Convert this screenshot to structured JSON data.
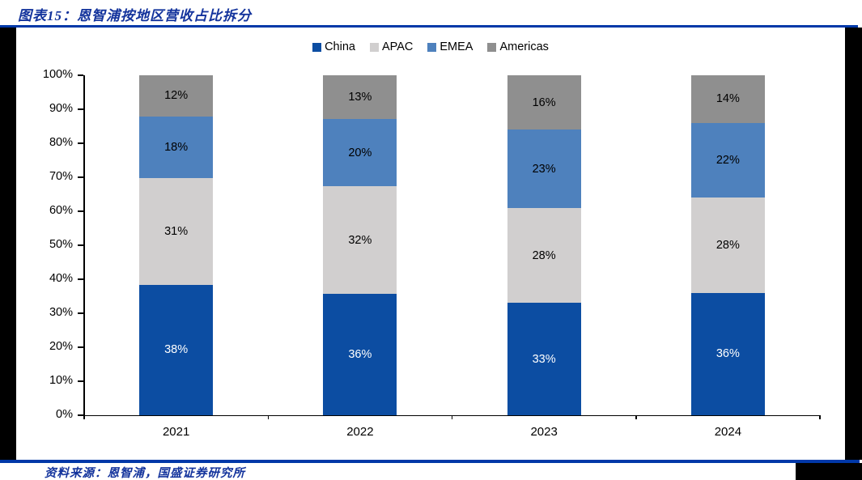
{
  "figure": {
    "title": "图表15：恩智浦按地区营收占比拆分",
    "source": "资料来源：恩智浦，国盛证券研究所"
  },
  "colors": {
    "divider_blue": "#0038A8",
    "caption_blue": "#13339C",
    "axis_black": "#000000",
    "page_frame_black": "#000000"
  },
  "chart_data": {
    "type": "bar",
    "stacked": true,
    "unit": "%",
    "title": "图表15：恩智浦按地区营收占比拆分",
    "categories": [
      "2021",
      "2022",
      "2023",
      "2024"
    ],
    "series": [
      {
        "name": "China",
        "color": "#0C4DA2",
        "label_color": "#FFFFFF",
        "values": [
          38,
          36,
          33,
          36
        ]
      },
      {
        "name": "APAC",
        "color": "#D1CFCF",
        "label_color": "#000000",
        "values": [
          31,
          32,
          28,
          28
        ]
      },
      {
        "name": "EMEA",
        "color": "#4E81BD",
        "label_color": "#000000",
        "values": [
          18,
          20,
          23,
          22
        ]
      },
      {
        "name": "Americas",
        "color": "#8F8F8F",
        "label_color": "#000000",
        "values": [
          12,
          13,
          16,
          14
        ]
      }
    ],
    "y_axis": {
      "min": 0,
      "max": 100,
      "step": 10,
      "tick_suffix": "%"
    },
    "ylim": [
      0,
      100
    ],
    "legend_position": "top",
    "gridlines": false,
    "bars_normalized_to_100": true
  }
}
